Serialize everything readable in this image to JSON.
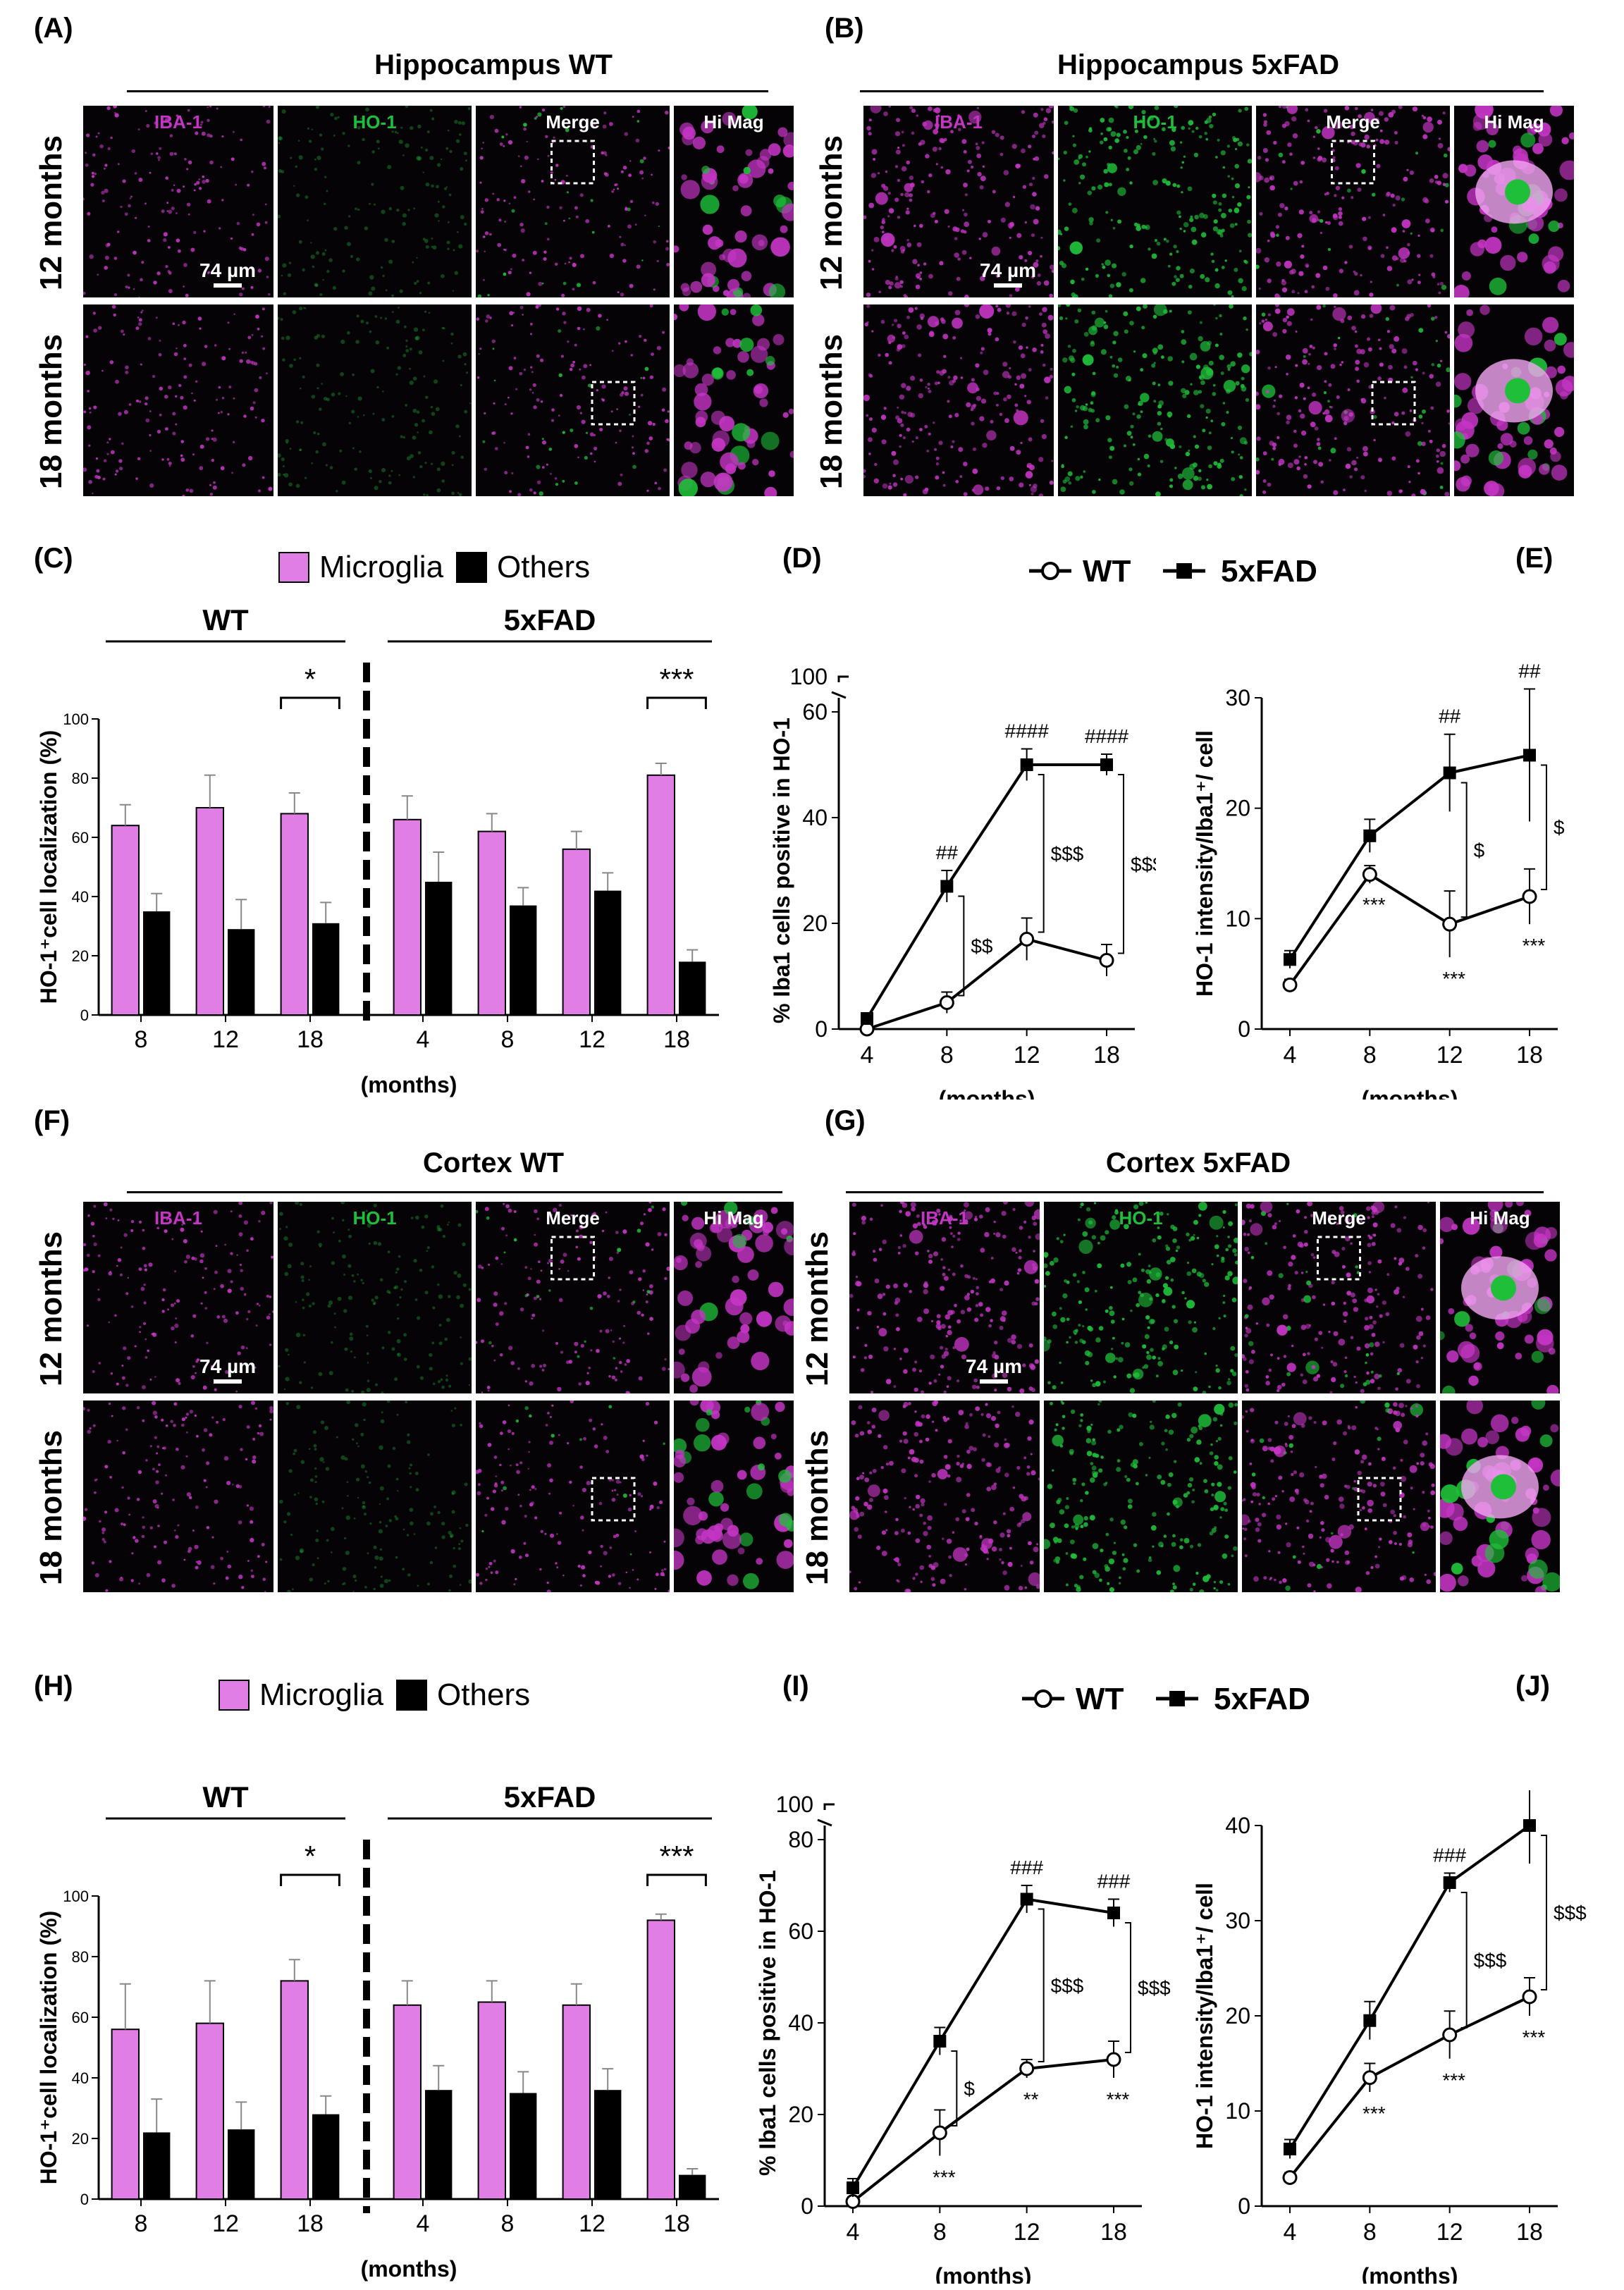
{
  "panel_labels": {
    "A": "(A)",
    "B": "(B)",
    "C": "(C)",
    "D": "(D)",
    "E": "(E)",
    "F": "(F)",
    "G": "(G)",
    "H": "(H)",
    "I": "(I)",
    "J": "(J)"
  },
  "micrographs": {
    "A": {
      "title": "Hippocampus WT"
    },
    "B": {
      "title": "Hippocampus 5xFAD"
    },
    "F": {
      "title": "Cortex WT"
    },
    "G": {
      "title": "Cortex 5xFAD"
    },
    "columns": [
      "IBA-1",
      "HO-1",
      "Merge",
      "Hi Mag"
    ],
    "rows": [
      "12 months",
      "18 months"
    ],
    "scale_bar": "74 µm",
    "colors": {
      "iba1": "#c535c5",
      "ho1": "#1fbf3a",
      "bg": "#050305"
    }
  },
  "bar_legend": {
    "microglia": "Microglia",
    "others": "Others",
    "microglia_color": "#e07ee6",
    "others_color": "#000000"
  },
  "line_legend": {
    "wt": "WT",
    "fad": "5xFAD"
  },
  "chart_data": [
    {
      "id": "C",
      "type": "bar",
      "ylabel": "HO-1⁺cell localization (%)",
      "xlabel": "(months)",
      "ylim": [
        0,
        100
      ],
      "yticks": [
        "0",
        "20",
        "40",
        "60",
        "80",
        "100"
      ],
      "groups": [
        {
          "name": "WT",
          "categories": [
            "8",
            "12",
            "18"
          ]
        },
        {
          "name": "5xFAD",
          "categories": [
            "4",
            "8",
            "12",
            "18"
          ]
        }
      ],
      "series": [
        {
          "name": "Microglia",
          "values": [
            64,
            70,
            68,
            66,
            62,
            56,
            81
          ],
          "errors": [
            7,
            11,
            7,
            8,
            6,
            6,
            4
          ]
        },
        {
          "name": "Others",
          "values": [
            35,
            29,
            31,
            45,
            37,
            42,
            18
          ],
          "errors": [
            6,
            10,
            7,
            10,
            6,
            6,
            4
          ]
        }
      ],
      "significance": [
        {
          "group": "WT",
          "category": "18",
          "label": "*"
        },
        {
          "group": "5xFAD",
          "category": "18",
          "label": "***"
        }
      ]
    },
    {
      "id": "D",
      "type": "line",
      "ylabel": "% Iba1 cells positive in HO-1",
      "xlabel": "(months)",
      "x": [
        "4",
        "8",
        "12",
        "18"
      ],
      "ylim": [
        0,
        60
      ],
      "yticks": [
        "0",
        "20",
        "40",
        "60"
      ],
      "ybreak_label": "100",
      "series": [
        {
          "name": "WT",
          "values": [
            0,
            5,
            17,
            13
          ],
          "errors": [
            1,
            2,
            4,
            3
          ]
        },
        {
          "name": "5xFAD",
          "values": [
            2,
            27,
            50,
            50
          ],
          "errors": [
            1,
            3,
            3,
            2
          ]
        }
      ],
      "annotations": [
        {
          "x": "8",
          "text": "##"
        },
        {
          "x": "12",
          "text": "####"
        },
        {
          "x": "18",
          "text": "####"
        }
      ],
      "brackets": [
        {
          "x": "8",
          "text": "$$"
        },
        {
          "x": "12",
          "text": "$$$"
        },
        {
          "x": "18",
          "text": "$$$"
        }
      ]
    },
    {
      "id": "E",
      "type": "line",
      "ylabel": "HO-1 intensity/Iba1⁺/ cell",
      "xlabel": "(months)",
      "x": [
        "4",
        "8",
        "12",
        "18"
      ],
      "ylim": [
        0,
        30
      ],
      "yticks": [
        "0",
        "10",
        "20",
        "30"
      ],
      "series": [
        {
          "name": "WT",
          "values": [
            4,
            14,
            9.5,
            12
          ],
          "errors": [
            0.5,
            0.8,
            3,
            2.5
          ]
        },
        {
          "name": "5xFAD",
          "values": [
            6.3,
            17.5,
            23.2,
            24.8
          ],
          "errors": [
            0.8,
            1.5,
            3.5,
            6
          ]
        }
      ],
      "annotations": [
        {
          "x": "12",
          "text": "##"
        },
        {
          "x": "18",
          "text": "##"
        }
      ],
      "below": [
        {
          "x": "8",
          "text": "***"
        },
        {
          "x": "12",
          "text": "***"
        },
        {
          "x": "18",
          "text": "***"
        }
      ],
      "brackets": [
        {
          "x": "12",
          "text": "$"
        },
        {
          "x": "18",
          "text": "$"
        }
      ]
    },
    {
      "id": "H",
      "type": "bar",
      "ylabel": "HO-1⁺cell localization (%)",
      "xlabel": "(months)",
      "ylim": [
        0,
        100
      ],
      "yticks": [
        "0",
        "20",
        "40",
        "60",
        "80",
        "100"
      ],
      "groups": [
        {
          "name": "WT",
          "categories": [
            "8",
            "12",
            "18"
          ]
        },
        {
          "name": "5xFAD",
          "categories": [
            "4",
            "8",
            "12",
            "18"
          ]
        }
      ],
      "series": [
        {
          "name": "Microglia",
          "values": [
            56,
            58,
            72,
            64,
            65,
            64,
            92
          ],
          "errors": [
            15,
            14,
            7,
            8,
            7,
            7,
            2
          ]
        },
        {
          "name": "Others",
          "values": [
            22,
            23,
            28,
            36,
            35,
            36,
            8
          ],
          "errors": [
            11,
            9,
            6,
            8,
            7,
            7,
            2
          ]
        }
      ],
      "significance": [
        {
          "group": "WT",
          "category": "18",
          "label": "*"
        },
        {
          "group": "5xFAD",
          "category": "18",
          "label": "***"
        }
      ]
    },
    {
      "id": "I",
      "type": "line",
      "ylabel": "% Iba1 cells positive in HO-1",
      "xlabel": "(months)",
      "x": [
        "4",
        "8",
        "12",
        "18"
      ],
      "ylim": [
        0,
        80
      ],
      "yticks": [
        "0",
        "20",
        "40",
        "60",
        "80"
      ],
      "ybreak_label": "100",
      "series": [
        {
          "name": "WT",
          "values": [
            1,
            16,
            30,
            32
          ],
          "errors": [
            1,
            5,
            2,
            4
          ]
        },
        {
          "name": "5xFAD",
          "values": [
            4,
            36,
            67,
            64
          ],
          "errors": [
            2,
            3,
            3,
            3
          ]
        }
      ],
      "annotations": [
        {
          "x": "12",
          "text": "###"
        },
        {
          "x": "18",
          "text": "###"
        }
      ],
      "below": [
        {
          "x": "8",
          "text": "***"
        },
        {
          "x": "12",
          "text": "**"
        },
        {
          "x": "18",
          "text": "***"
        }
      ],
      "brackets": [
        {
          "x": "8",
          "text": "$"
        },
        {
          "x": "12",
          "text": "$$$"
        },
        {
          "x": "18",
          "text": "$$$"
        }
      ]
    },
    {
      "id": "J",
      "type": "line",
      "ylabel": "HO-1 intensity/Iba1⁺/ cell",
      "xlabel": "(months)",
      "x": [
        "4",
        "8",
        "12",
        "18"
      ],
      "ylim": [
        0,
        40
      ],
      "yticks": [
        "0",
        "10",
        "20",
        "30",
        "40"
      ],
      "series": [
        {
          "name": "WT",
          "values": [
            3,
            13.5,
            18,
            22
          ],
          "errors": [
            0.5,
            1.5,
            2.5,
            2
          ]
        },
        {
          "name": "5xFAD",
          "values": [
            6,
            19.5,
            34,
            40
          ],
          "errors": [
            1,
            2,
            1,
            4
          ]
        }
      ],
      "annotations": [
        {
          "x": "12",
          "text": "###"
        },
        {
          "x": "18",
          "text": "###"
        }
      ],
      "below": [
        {
          "x": "8",
          "text": "***"
        },
        {
          "x": "12",
          "text": "***"
        },
        {
          "x": "18",
          "text": "***"
        }
      ],
      "brackets": [
        {
          "x": "12",
          "text": "$$$"
        },
        {
          "x": "18",
          "text": "$$$"
        }
      ]
    }
  ]
}
